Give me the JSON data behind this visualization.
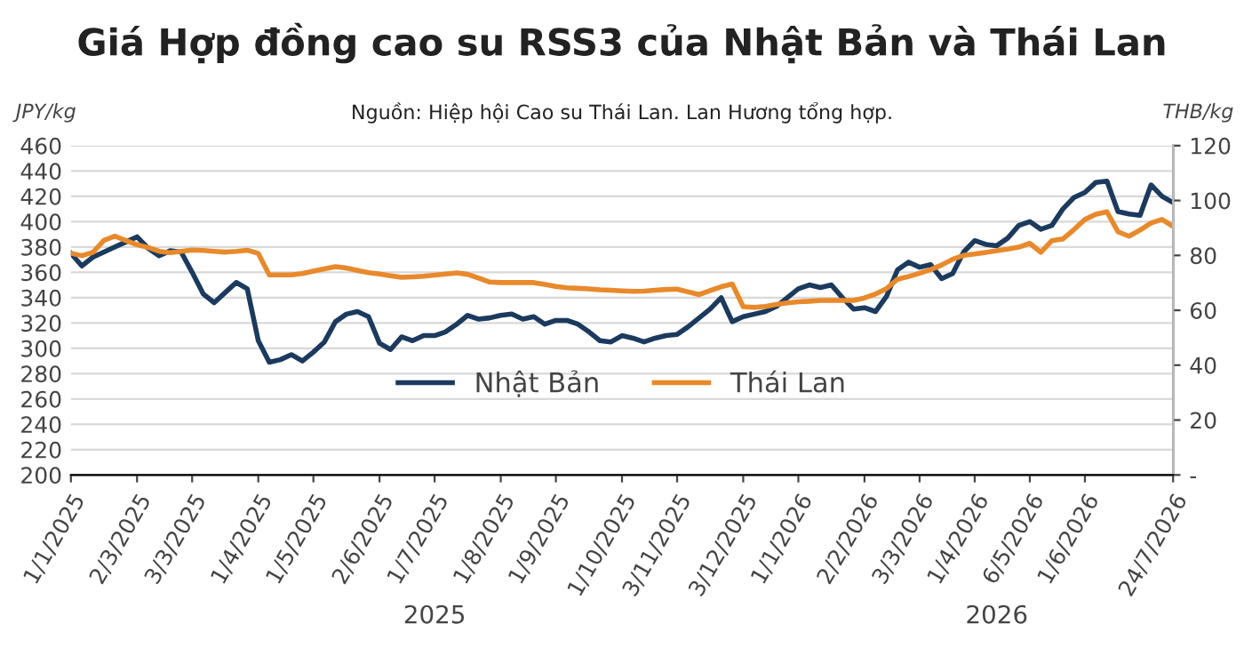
{
  "chart_data": {
    "type": "line",
    "title": "Giá Hợp đồng cao su RSS3 của Nhật Bản và Thái Lan",
    "subtitle": "Nguồn: Hiệp hội Cao su Thái Lan. Lan Hương tổng hợp.",
    "ylabel": "JPY/kg",
    "y2label": "THB/kg",
    "annotations": [
      "2025",
      "2026"
    ],
    "categories": [
      "1/1/2025",
      null,
      null,
      null,
      null,
      null,
      "2/3/2025",
      null,
      null,
      null,
      null,
      "3/3/2025",
      null,
      null,
      null,
      null,
      null,
      "1/4/2025",
      null,
      null,
      null,
      null,
      "1/5/2025",
      null,
      null,
      null,
      null,
      null,
      "2/6/2025",
      null,
      null,
      null,
      null,
      "1/7/2025",
      null,
      null,
      null,
      null,
      null,
      "1/8/2025",
      null,
      null,
      null,
      null,
      "1/9/2025",
      null,
      null,
      null,
      null,
      null,
      "1/10/2025",
      null,
      null,
      null,
      null,
      "3/11/2025",
      null,
      null,
      null,
      null,
      null,
      "3/12/2025",
      null,
      null,
      null,
      null,
      "1/1/2026",
      null,
      null,
      null,
      null,
      null,
      "2/2/2026",
      null,
      null,
      null,
      null,
      "3/3/2026",
      null,
      null,
      null,
      null,
      "1/4/2026",
      null,
      null,
      null,
      null,
      "6/5/2026",
      null,
      null,
      null,
      null,
      "1/6/2026",
      null,
      null,
      null,
      null,
      null,
      null,
      null,
      "24/7/2026"
    ],
    "series": [
      {
        "name": "Nhật Bản",
        "color": "#1b3a5e",
        "values": [
          375,
          365,
          372,
          376,
          380,
          384,
          388,
          379,
          373,
          377,
          376,
          360,
          343,
          336,
          344,
          352,
          347,
          306,
          289,
          291,
          295,
          290,
          297,
          305,
          321,
          327,
          329,
          325,
          304,
          299,
          309,
          306,
          310,
          310,
          313,
          319,
          326,
          323,
          324,
          326,
          327,
          323,
          325,
          319,
          322,
          322,
          319,
          313,
          306,
          305,
          310,
          308,
          305,
          308,
          310,
          311,
          317,
          324,
          331,
          340,
          321,
          325,
          327,
          329,
          333,
          340,
          347,
          350,
          348,
          350,
          340,
          331,
          332,
          329,
          341,
          362,
          368,
          364,
          366,
          355,
          359,
          376,
          385,
          382,
          381,
          387,
          397,
          400,
          394,
          397,
          410,
          419,
          423,
          431,
          432,
          408,
          406,
          405,
          429,
          420,
          415
        ]
      },
      {
        "name": "Thái Lan",
        "color": "#e8892b",
        "axis": "y2",
        "values": [
          80.8,
          79.9,
          81.1,
          85.5,
          87.0,
          85.4,
          83.9,
          82.9,
          81.5,
          81.0,
          81.5,
          82.0,
          81.8,
          81.5,
          81.2,
          81.5,
          81.9,
          80.7,
          72.9,
          72.9,
          72.9,
          73.4,
          74.3,
          75.1,
          75.9,
          75.4,
          74.5,
          73.7,
          73.2,
          72.6,
          72.0,
          72.2,
          72.4,
          72.8,
          73.2,
          73.6,
          73.1,
          71.7,
          70.3,
          70.1,
          70.1,
          70.1,
          70.1,
          69.4,
          68.7,
          68.2,
          68.0,
          67.8,
          67.5,
          67.3,
          67.1,
          66.9,
          67.0,
          67.3,
          67.6,
          67.7,
          66.7,
          65.7,
          67.2,
          68.6,
          69.6,
          61.3,
          61.1,
          61.4,
          62.1,
          62.7,
          63.1,
          63.3,
          63.6,
          63.6,
          63.6,
          63.6,
          64.5,
          65.9,
          67.9,
          71.3,
          72.3,
          73.5,
          74.8,
          76.5,
          78.6,
          80.0,
          80.5,
          81.1,
          81.7,
          82.3,
          83.0,
          84.4,
          81.1,
          85.4,
          86.0,
          89.4,
          93.1,
          95.0,
          95.9,
          88.6,
          87.0,
          89.2,
          91.8,
          93.1,
          90.5
        ]
      }
    ],
    "ylim": [
      200,
      460
    ],
    "yticks": [
      200,
      220,
      240,
      260,
      280,
      300,
      320,
      340,
      360,
      380,
      400,
      420,
      440,
      460
    ],
    "y2lim": [
      0,
      120
    ],
    "y2ticks": [
      {
        "value": 0,
        "label": "-"
      },
      20,
      40,
      60,
      80,
      100,
      120
    ],
    "grid": "y",
    "legend": "bottom",
    "line_style": "solid",
    "marker": "none"
  }
}
